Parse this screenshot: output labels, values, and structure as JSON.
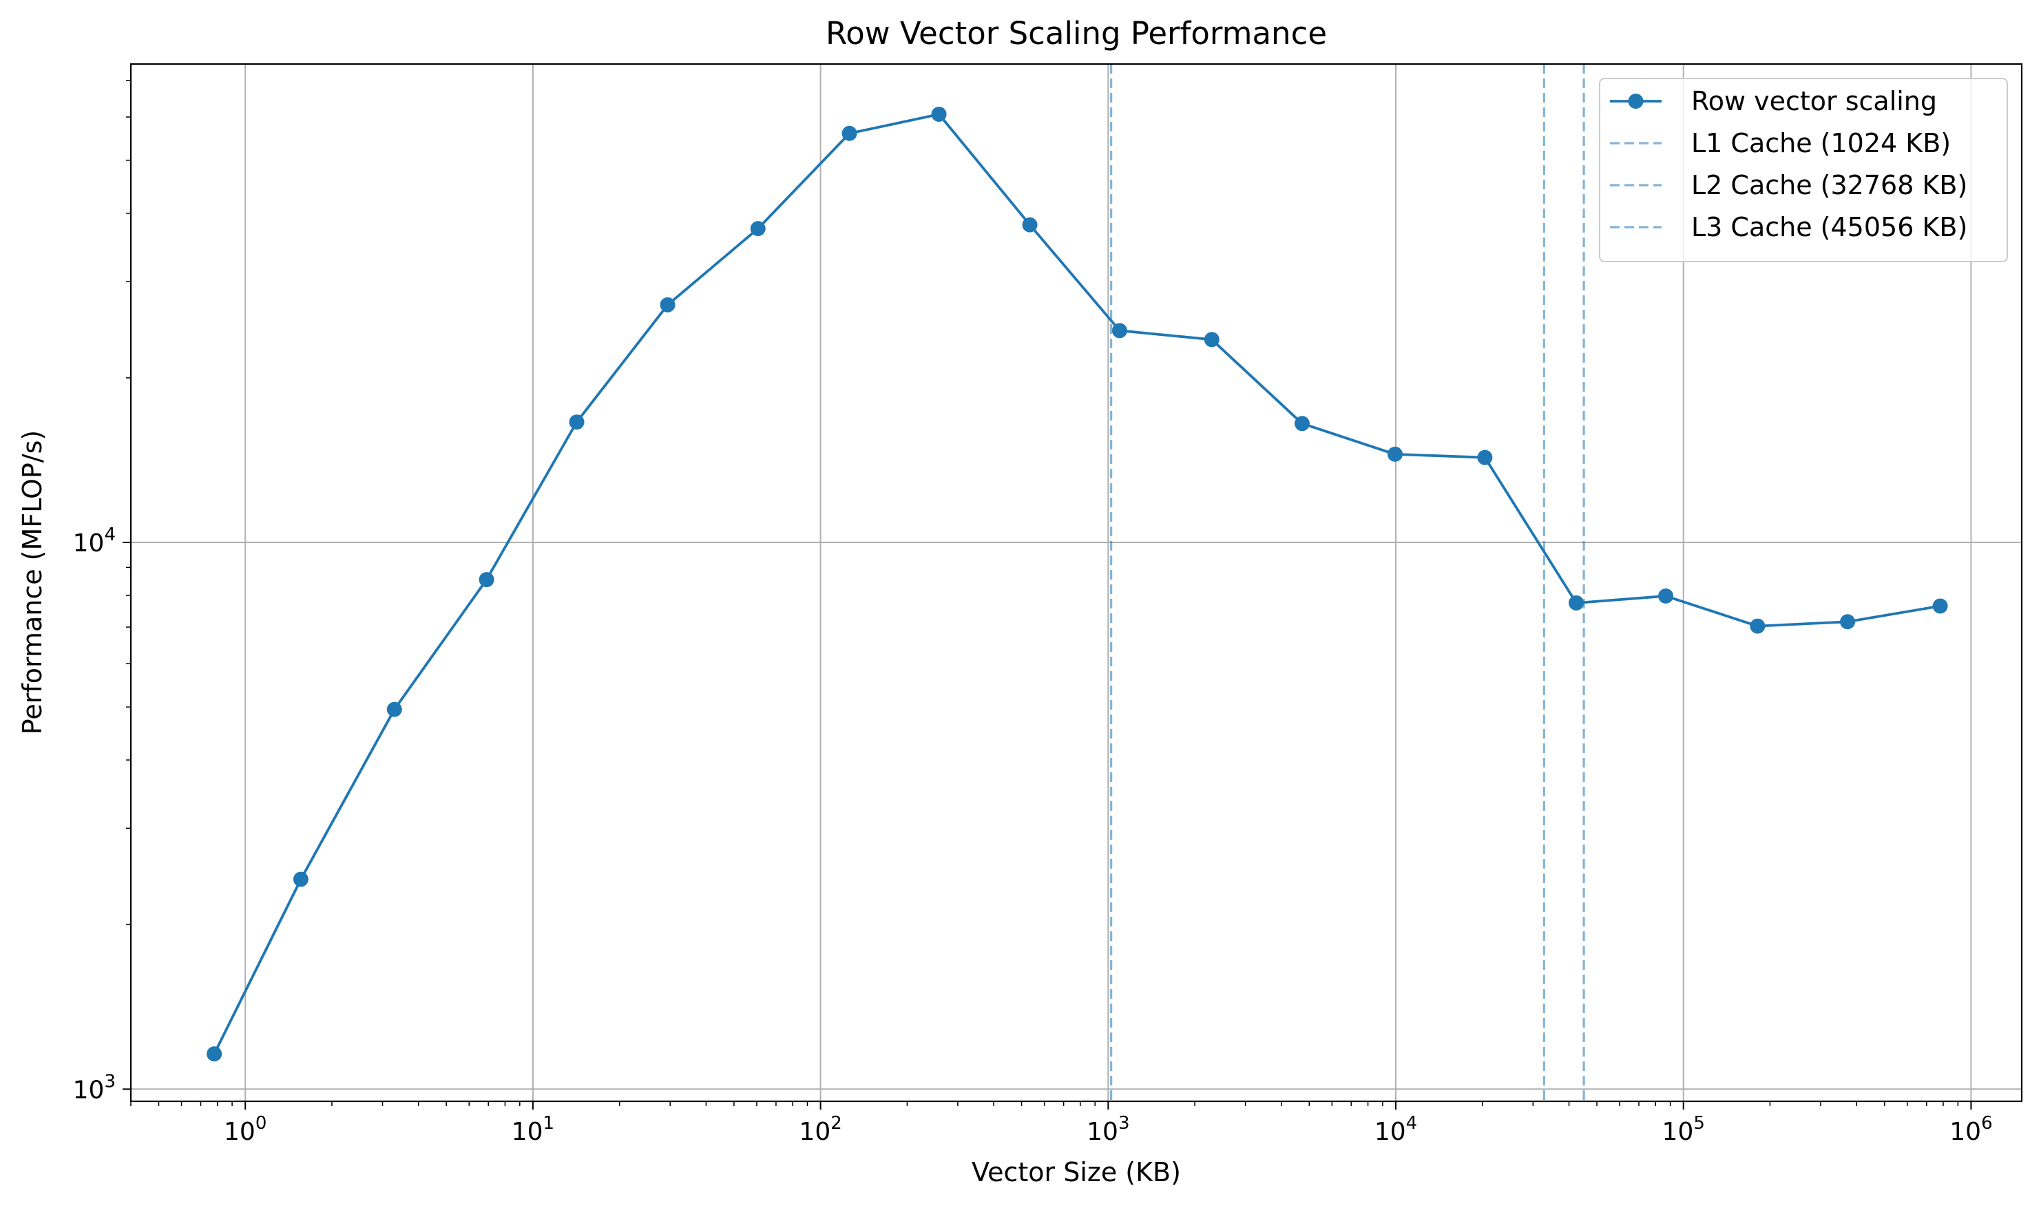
{
  "chart_data": {
    "type": "line",
    "title": "Row Vector Scaling Performance",
    "xlabel": "Vector Size (KB)",
    "ylabel": "Performance (MFLOP/s)",
    "xscale": "log",
    "yscale": "log",
    "xlim": [
      0.4,
      1500000
    ],
    "ylim": [
      950,
      75000
    ],
    "grid": true,
    "legend_position": "top-right",
    "x_ticks": [
      {
        "value": 1,
        "base": "10",
        "exp": "0"
      },
      {
        "value": 10,
        "base": "10",
        "exp": "1"
      },
      {
        "value": 100,
        "base": "10",
        "exp": "2"
      },
      {
        "value": 1000,
        "base": "10",
        "exp": "3"
      },
      {
        "value": 10000,
        "base": "10",
        "exp": "4"
      },
      {
        "value": 100000,
        "base": "10",
        "exp": "5"
      },
      {
        "value": 1000000,
        "base": "10",
        "exp": "6"
      }
    ],
    "y_ticks": [
      {
        "value": 1000,
        "base": "10",
        "exp": "3"
      },
      {
        "value": 10000,
        "base": "10",
        "exp": "4"
      }
    ],
    "series": [
      {
        "name": "Row vector scaling",
        "color": "#1f77b4",
        "marker": "circle",
        "x": [
          0.78,
          1.56,
          3.3,
          6.9,
          14.2,
          29.4,
          60.6,
          126,
          258,
          534,
          1096,
          2292,
          4724,
          9940,
          20400,
          42400,
          86800,
          181000,
          372000,
          781000
        ],
        "y": [
          1160,
          2420,
          4950,
          8550,
          16600,
          27200,
          37500,
          56000,
          60700,
          38100,
          24400,
          23500,
          16500,
          14500,
          14300,
          7750,
          7980,
          7030,
          7160,
          7650
        ]
      }
    ],
    "reference_lines": [
      {
        "name": "L1 Cache (1024 KB)",
        "x": 1024,
        "color": "#1f77b4",
        "style": "dashed",
        "opacity": 0.55
      },
      {
        "name": "L2 Cache (32768 KB)",
        "x": 32768,
        "color": "#1f77b4",
        "style": "dashed",
        "opacity": 0.55
      },
      {
        "name": "L3 Cache (45056 KB)",
        "x": 45056,
        "color": "#1f77b4",
        "style": "dashed",
        "opacity": 0.55
      }
    ]
  }
}
